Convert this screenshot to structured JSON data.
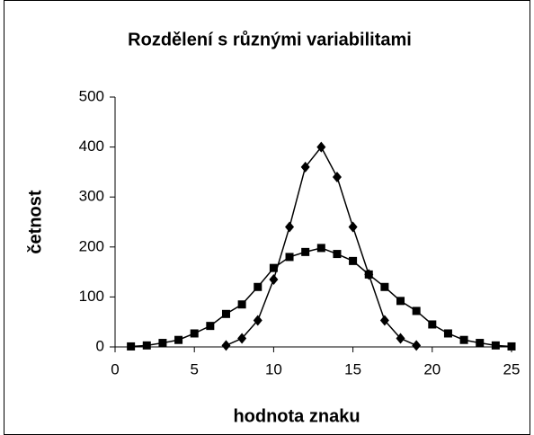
{
  "chart_data": {
    "type": "line",
    "title": "Rozdělení s různými variabilitami",
    "x_label": "hodnota znaku",
    "y_label": "četnost",
    "series": [
      {
        "color": "#000000",
        "marker": "diamond",
        "x": [
          7,
          8,
          9,
          10,
          11,
          12,
          13,
          14,
          15,
          16,
          17,
          18,
          19
        ],
        "values": [
          3,
          17,
          53,
          135,
          240,
          360,
          400,
          340,
          240,
          145,
          53,
          17,
          3
        ]
      },
      {
        "color": "#000000",
        "marker": "square",
        "x": [
          1,
          2,
          3,
          4,
          5,
          6,
          7,
          8,
          9,
          10,
          11,
          12,
          13,
          14,
          15,
          16,
          17,
          18,
          19,
          20,
          21,
          22,
          23,
          24,
          25
        ],
        "values": [
          1,
          3,
          8,
          14,
          27,
          42,
          66,
          85,
          120,
          158,
          180,
          190,
          198,
          186,
          172,
          145,
          120,
          92,
          72,
          45,
          27,
          14,
          8,
          3,
          1
        ]
      }
    ],
    "xlim": [
      0,
      25
    ],
    "xticks": [
      0,
      5,
      10,
      15,
      20,
      25
    ],
    "ylim": [
      0,
      500
    ],
    "yticks": [
      0,
      100,
      200,
      300,
      400,
      500
    ],
    "grid": false
  }
}
